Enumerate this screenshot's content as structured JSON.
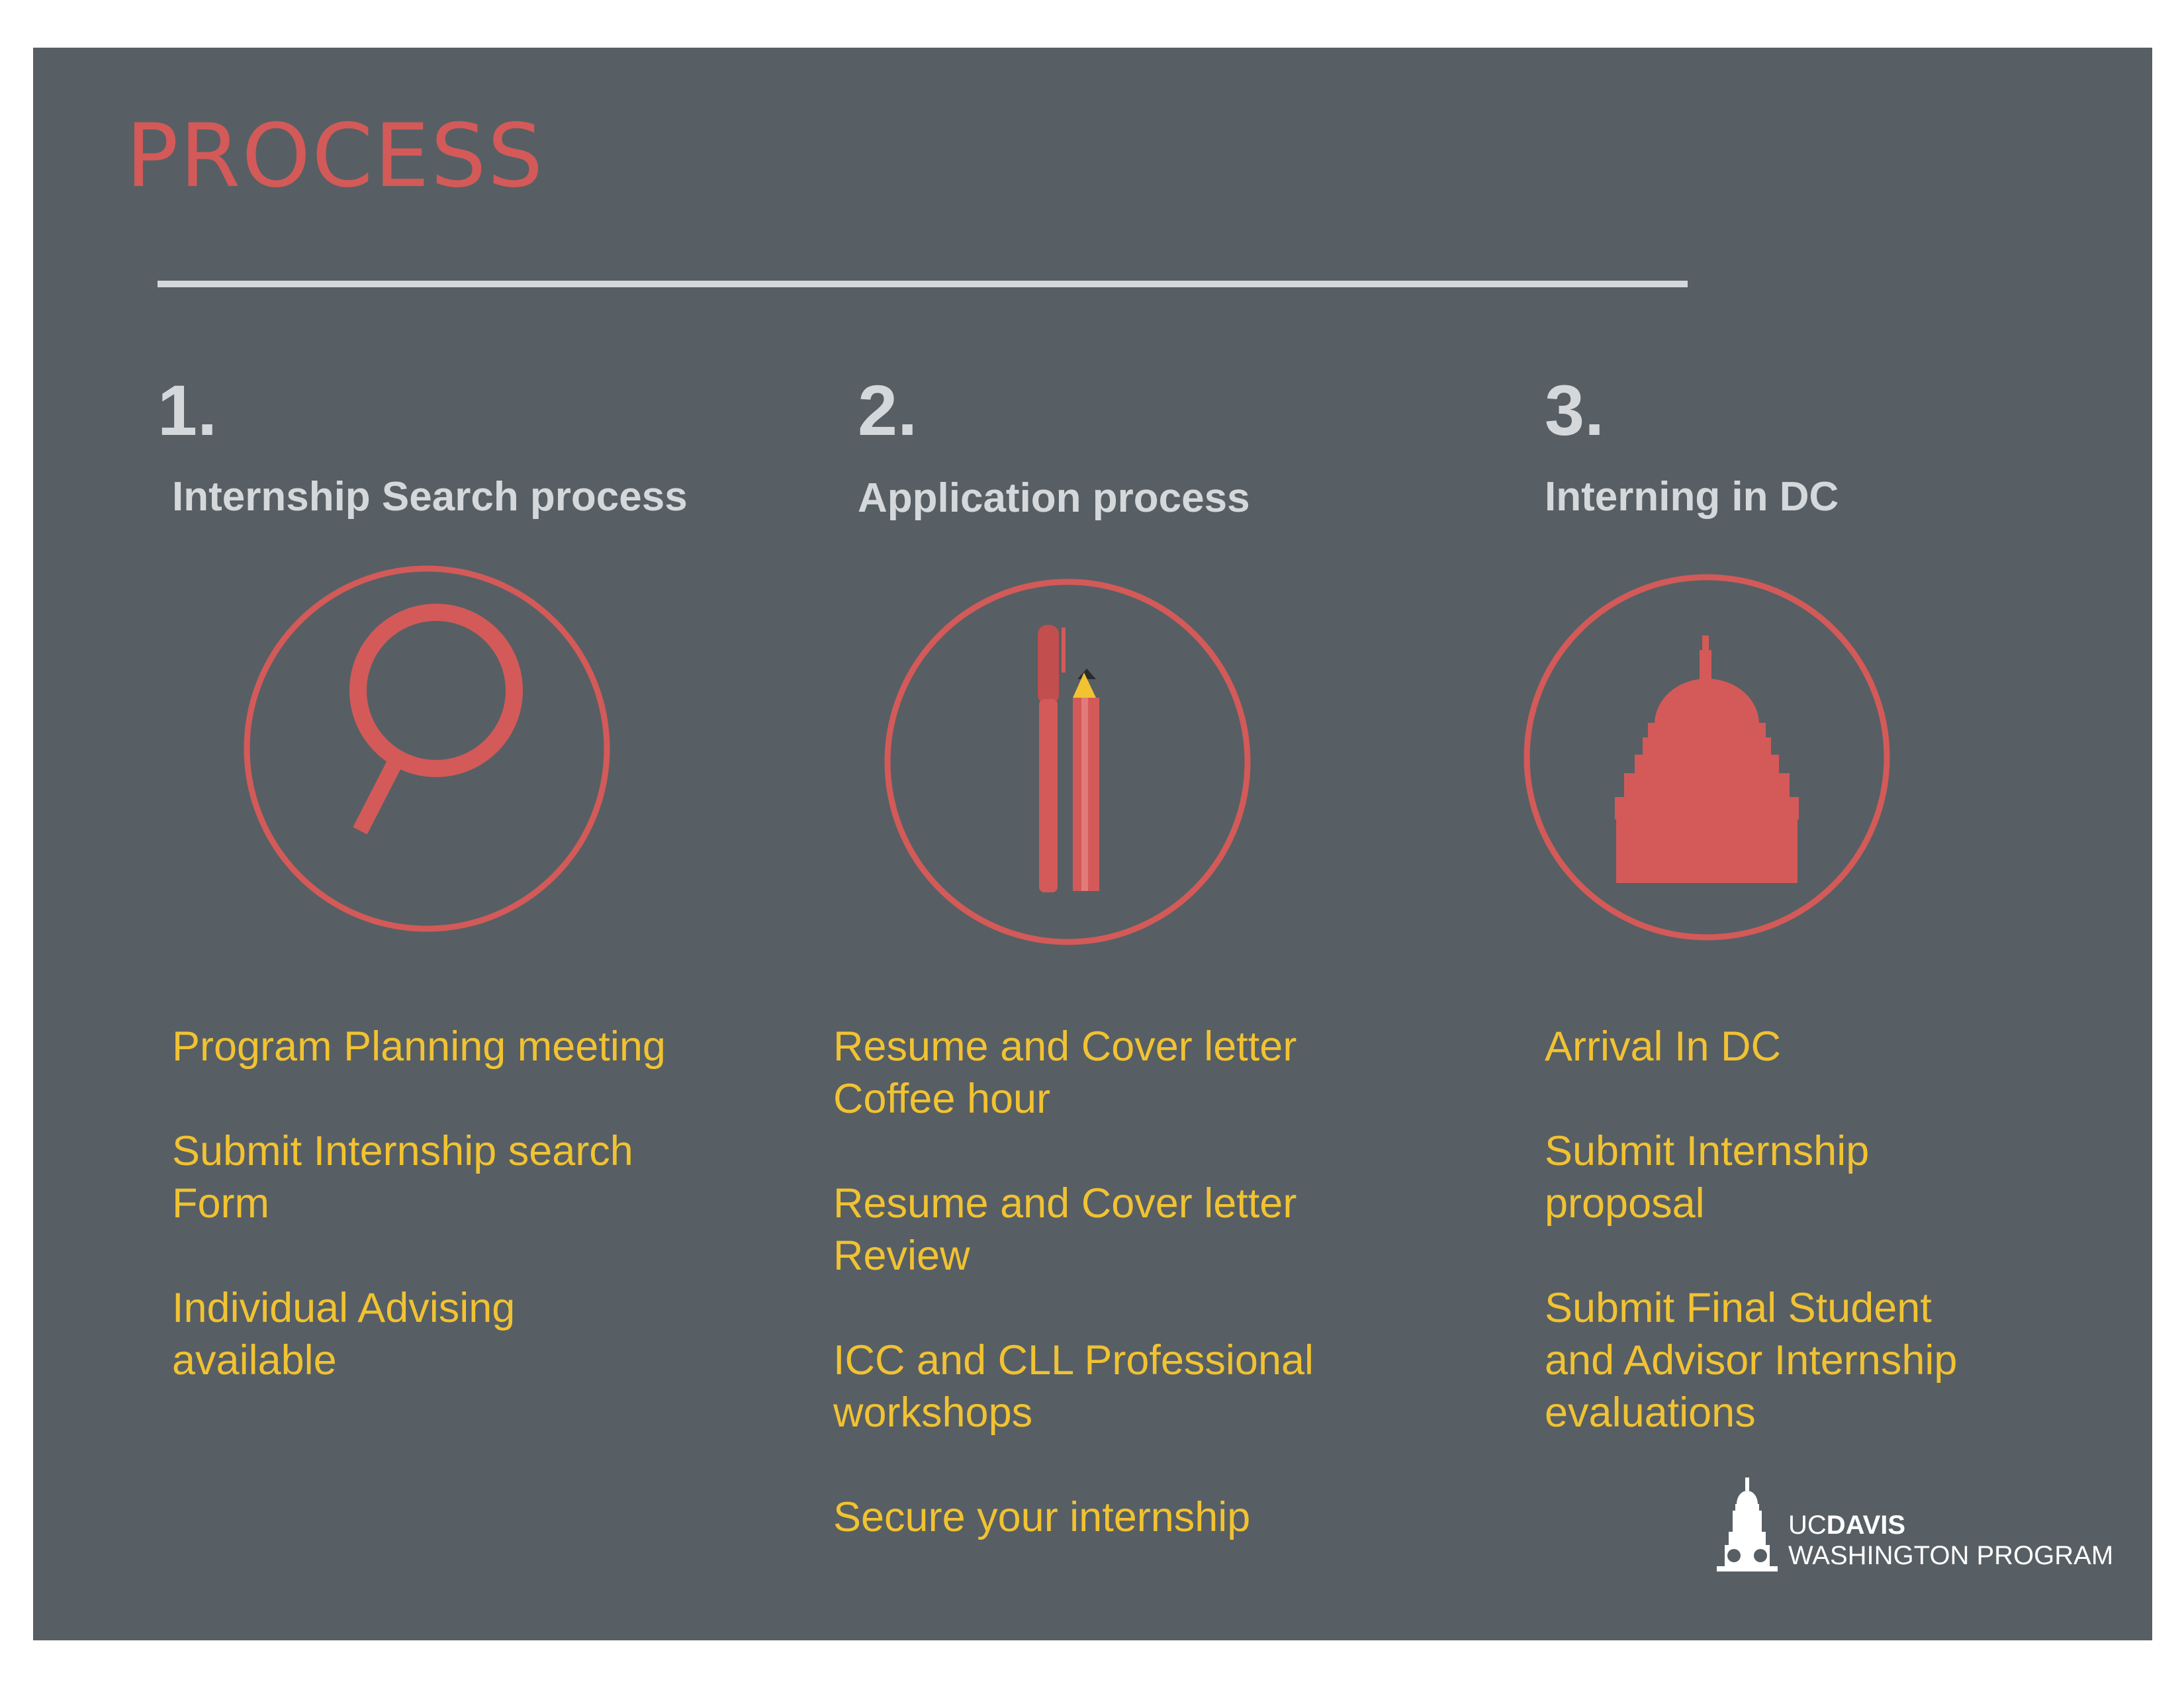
{
  "title": "PROCESS",
  "columns": [
    {
      "number": "1.",
      "heading": "Internship Search process",
      "icon": "magnifying-glass-icon",
      "items": [
        "Program Planning meeting",
        "Submit Internship search\nForm",
        "Individual Advising\navailable"
      ]
    },
    {
      "number": "2.",
      "heading": "Application process",
      "icon": "pen-and-pencil-icon",
      "items": [
        "Resume and Cover letter\nCoffee hour",
        "Resume and Cover letter\nReview",
        "ICC and CLL Professional\nworkshops",
        "Secure your internship"
      ]
    },
    {
      "number": "3.",
      "heading": "Interning in DC",
      "icon": "capitol-dome-icon",
      "items": [
        "Arrival In DC",
        "Submit Internship\nproposal",
        "Submit Final Student\nand Advisor Internship\nevaluations"
      ]
    }
  ],
  "logo": {
    "uc": "UC",
    "davis": "DAVIS",
    "program": "WASHINGTON PROGRAM",
    "icon": "capitol-tower-logo-icon"
  },
  "colors": {
    "background": "#575f64",
    "accent": "#d35a58",
    "list_text": "#f1c232",
    "heading_text": "#d4d8da"
  }
}
